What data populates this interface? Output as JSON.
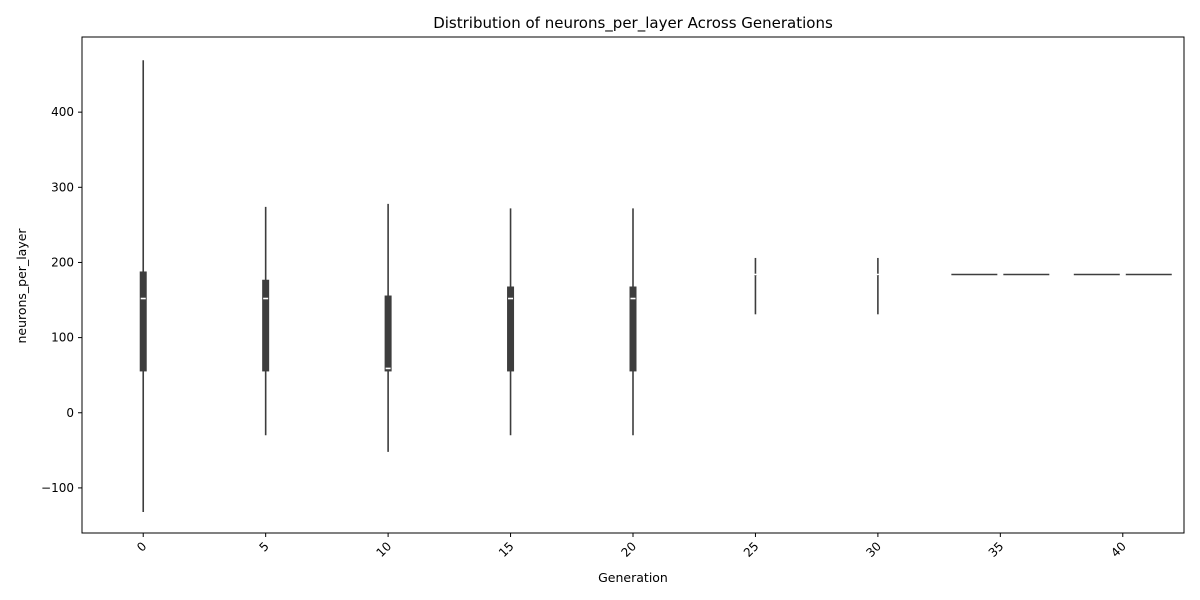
{
  "chart_data": {
    "type": "violin",
    "title": "Distribution of neurons_per_layer Across Generations",
    "xlabel": "Generation",
    "ylabel": "neurons_per_layer",
    "x_ticks": [
      0,
      5,
      10,
      15,
      20,
      25,
      30,
      35,
      40
    ],
    "x_tick_rotation": 45,
    "xlim": [
      -2.5,
      42.5
    ],
    "y_ticks": [
      -100,
      0,
      100,
      200,
      300,
      400
    ],
    "ylim": [
      -160,
      500
    ],
    "grid": false,
    "color": "#3d3d3d",
    "median_color": "#ffffff",
    "series": [
      {
        "generation": 0,
        "min": -132,
        "q1": 55,
        "median": 152,
        "q3": 188,
        "max": 469,
        "width": 0.6
      },
      {
        "generation": 5,
        "min": -30,
        "q1": 55,
        "median": 152,
        "q3": 177,
        "max": 274,
        "width": 0.6
      },
      {
        "generation": 10,
        "min": -52,
        "q1": 55,
        "median": 59,
        "q3": 156,
        "max": 278,
        "width": 0.6
      },
      {
        "generation": 15,
        "min": -30,
        "q1": 55,
        "median": 152,
        "q3": 168,
        "max": 272,
        "width": 0.6
      },
      {
        "generation": 20,
        "min": -30,
        "q1": 55,
        "median": 152,
        "q3": 168,
        "max": 272,
        "width": 0.6
      },
      {
        "generation": 25,
        "min": 131,
        "q1": 182,
        "median": 184,
        "q3": 185,
        "max": 206,
        "width": 0.1
      },
      {
        "generation": 30,
        "min": 131,
        "q1": 182,
        "median": 184,
        "q3": 185,
        "max": 206,
        "width": 0.1
      },
      {
        "generation": 35,
        "min": 184,
        "q1": 184,
        "median": 184,
        "q3": 184,
        "max": 184,
        "width": 4.0
      },
      {
        "generation": 40,
        "min": 184,
        "q1": 184,
        "median": 184,
        "q3": 184,
        "max": 184,
        "width": 4.0
      }
    ]
  }
}
